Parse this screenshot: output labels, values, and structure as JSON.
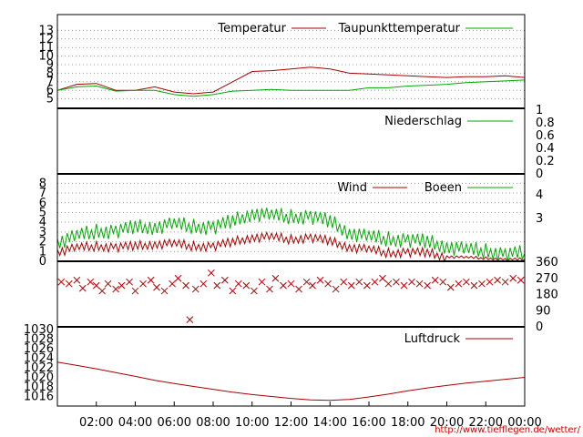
{
  "colors": {
    "red": "#aa0000",
    "green": "#00aa00",
    "grid": "#999999",
    "axis": "#000000",
    "credit": "#cc0000"
  },
  "credit_text": "http://www.tiefflegen.de/wetter/",
  "chart_data": [
    {
      "type": "line",
      "panel": "temperature",
      "xlim": [
        0,
        24
      ],
      "ylim": [
        4,
        14
      ],
      "yticks": [
        "5",
        "6",
        "7",
        "8",
        "9",
        "10",
        "11",
        "12",
        "13"
      ],
      "legend_placement": "top",
      "grid": true,
      "series": [
        {
          "name": "Temperatur",
          "color": "red",
          "x": [
            0,
            1,
            2,
            3,
            4,
            5,
            6,
            7,
            7.5,
            8,
            9,
            10,
            11,
            12,
            13,
            14,
            15,
            16,
            17,
            18,
            19,
            20,
            21,
            22,
            23,
            24
          ],
          "values": [
            6.0,
            6.7,
            6.8,
            6.0,
            6.0,
            6.4,
            5.8,
            5.6,
            5.7,
            5.8,
            7.0,
            8.2,
            8.3,
            8.5,
            8.7,
            8.5,
            8.0,
            7.9,
            7.8,
            7.7,
            7.6,
            7.5,
            7.6,
            7.6,
            7.7,
            7.5
          ]
        },
        {
          "name": "Taupunkttemperatur",
          "color": "green",
          "x": [
            0,
            1,
            2,
            3,
            4,
            5,
            6,
            7,
            8,
            9,
            10,
            11,
            12,
            13,
            14,
            15,
            16,
            17,
            18,
            19,
            20,
            21,
            22,
            23,
            24
          ],
          "values": [
            6.0,
            6.4,
            6.5,
            5.9,
            6.0,
            6.0,
            5.5,
            5.3,
            5.5,
            5.9,
            6.0,
            6.1,
            6.0,
            6.0,
            6.0,
            6.0,
            6.3,
            6.3,
            6.5,
            6.6,
            6.7,
            6.9,
            7.0,
            7.1,
            7.2
          ]
        }
      ]
    },
    {
      "type": "line",
      "panel": "precipitation",
      "xlim": [
        0,
        24
      ],
      "ylim": [
        0,
        1
      ],
      "yticks": [
        "0",
        "0.2",
        "0.4",
        "0.6",
        "0.8",
        "1"
      ],
      "legend_placement": "top-right",
      "series": [
        {
          "name": "Niederschlag",
          "color": "green",
          "x": [
            0,
            24
          ],
          "values": [
            0,
            0
          ]
        }
      ]
    },
    {
      "type": "line",
      "panel": "wind",
      "xlim": [
        0,
        24
      ],
      "ylim": [
        0,
        8.5
      ],
      "yticks": [
        "0",
        "1",
        "2",
        "3",
        "4",
        "5",
        "6",
        "7",
        "8"
      ],
      "right_ticks": [
        "3",
        "4"
      ],
      "legend_placement": "top",
      "grid": true,
      "series": [
        {
          "name": "Wind",
          "color": "red",
          "x": [
            0,
            1,
            2,
            3,
            4,
            5,
            6,
            7,
            8,
            9,
            10,
            11,
            12,
            13,
            14,
            15,
            16,
            17,
            18,
            19,
            20,
            21,
            22,
            23,
            24
          ],
          "values": [
            1.0,
            1.4,
            1.5,
            1.5,
            1.5,
            1.8,
            1.8,
            1.5,
            1.6,
            1.9,
            2.5,
            2.5,
            2.2,
            2.5,
            2.0,
            1.5,
            1.2,
            0.8,
            1.0,
            0.8,
            0.5,
            0.4,
            0.3,
            0.2,
            0.2
          ]
        },
        {
          "name": "Boeen",
          "color": "green",
          "x": [
            0,
            1,
            2,
            3,
            4,
            5,
            6,
            7,
            8,
            9,
            10,
            11,
            12,
            13,
            14,
            15,
            16,
            17,
            18,
            19,
            20,
            21,
            22,
            23,
            24
          ],
          "values": [
            2.0,
            2.6,
            3.0,
            3.2,
            3.4,
            3.6,
            3.8,
            3.5,
            3.6,
            4.0,
            5.0,
            4.7,
            4.5,
            4.7,
            4.0,
            3.0,
            2.5,
            2.2,
            2.3,
            1.9,
            1.6,
            1.2,
            1.0,
            0.8,
            0.8
          ]
        }
      ]
    },
    {
      "type": "scatter",
      "panel": "wind_direction",
      "xlim": [
        0,
        24
      ],
      "ylim": [
        0,
        360
      ],
      "right_ticks": [
        "0",
        "90",
        "180",
        "270",
        "360"
      ],
      "marker": "x",
      "color": "red",
      "points": [
        [
          0.2,
          250
        ],
        [
          0.6,
          240
        ],
        [
          1.0,
          260
        ],
        [
          1.3,
          215
        ],
        [
          1.7,
          250
        ],
        [
          2.0,
          230
        ],
        [
          2.3,
          200
        ],
        [
          2.6,
          240
        ],
        [
          3.0,
          210
        ],
        [
          3.3,
          230
        ],
        [
          3.7,
          250
        ],
        [
          4.0,
          200
        ],
        [
          4.4,
          240
        ],
        [
          4.8,
          260
        ],
        [
          5.1,
          220
        ],
        [
          5.5,
          200
        ],
        [
          5.9,
          240
        ],
        [
          6.2,
          270
        ],
        [
          6.6,
          230
        ],
        [
          6.8,
          40
        ],
        [
          7.1,
          210
        ],
        [
          7.5,
          240
        ],
        [
          7.9,
          300
        ],
        [
          8.2,
          230
        ],
        [
          8.6,
          260
        ],
        [
          9.0,
          200
        ],
        [
          9.3,
          240
        ],
        [
          9.7,
          230
        ],
        [
          10.1,
          200
        ],
        [
          10.5,
          250
        ],
        [
          10.9,
          210
        ],
        [
          11.2,
          270
        ],
        [
          11.6,
          230
        ],
        [
          12.0,
          240
        ],
        [
          12.4,
          210
        ],
        [
          12.8,
          250
        ],
        [
          13.1,
          230
        ],
        [
          13.5,
          260
        ],
        [
          13.9,
          240
        ],
        [
          14.3,
          210
        ],
        [
          14.7,
          250
        ],
        [
          15.1,
          230
        ],
        [
          15.5,
          250
        ],
        [
          15.9,
          230
        ],
        [
          16.3,
          250
        ],
        [
          16.7,
          270
        ],
        [
          17.0,
          240
        ],
        [
          17.4,
          250
        ],
        [
          17.8,
          230
        ],
        [
          18.2,
          250
        ],
        [
          18.6,
          240
        ],
        [
          19.0,
          230
        ],
        [
          19.4,
          260
        ],
        [
          19.8,
          250
        ],
        [
          20.2,
          220
        ],
        [
          20.6,
          240
        ],
        [
          21.0,
          250
        ],
        [
          21.4,
          230
        ],
        [
          21.8,
          240
        ],
        [
          22.2,
          250
        ],
        [
          22.6,
          260
        ],
        [
          23.0,
          250
        ],
        [
          23.4,
          270
        ],
        [
          23.8,
          260
        ]
      ]
    },
    {
      "type": "line",
      "panel": "pressure",
      "xlim": [
        0,
        24
      ],
      "ylim": [
        1014,
        1030
      ],
      "yticks": [
        "1016",
        "1018",
        "1020",
        "1022",
        "1024",
        "1026",
        "1028",
        "1030"
      ],
      "xticks": [
        "02:00",
        "04:00",
        "06:00",
        "08:00",
        "10:00",
        "12:00",
        "14:00",
        "16:00",
        "18:00",
        "20:00",
        "22:00",
        "00:00"
      ],
      "legend_placement": "top-right",
      "series": [
        {
          "name": "Luftdruck",
          "color": "red",
          "x": [
            0,
            1,
            2,
            3,
            4,
            5,
            6,
            7,
            8,
            9,
            10,
            11,
            12,
            13,
            14,
            15,
            16,
            17,
            18,
            19,
            20,
            21,
            22,
            23,
            24
          ],
          "values": [
            1023.2,
            1022.5,
            1021.8,
            1021.0,
            1020.2,
            1019.4,
            1018.7,
            1018.1,
            1017.5,
            1016.9,
            1016.4,
            1016.0,
            1015.6,
            1015.3,
            1015.2,
            1015.4,
            1015.9,
            1016.5,
            1017.2,
            1017.8,
            1018.3,
            1018.8,
            1019.2,
            1019.6,
            1020.0
          ]
        }
      ]
    }
  ]
}
